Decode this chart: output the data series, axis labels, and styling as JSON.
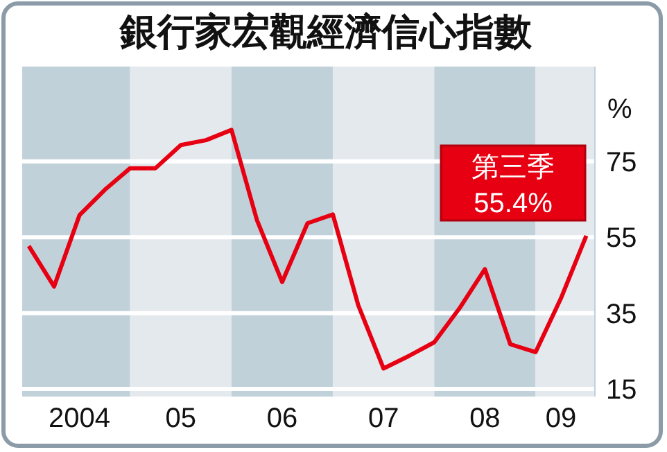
{
  "chart_data": {
    "type": "line",
    "title": "銀行家宏觀經濟信心指數",
    "ylabel": "%",
    "categories": [
      null,
      null,
      "2004",
      null,
      null,
      null,
      "05",
      null,
      null,
      null,
      "06",
      null,
      null,
      null,
      "07",
      null,
      null,
      null,
      "08",
      null,
      null,
      "09",
      null
    ],
    "series": [
      {
        "color": "#e60012",
        "values": [
          52.7,
          42.0,
          60.8,
          67.5,
          73.2,
          73.2,
          79.3,
          80.6,
          83.3,
          59.6,
          43.2,
          58.7,
          61.0,
          37.1,
          20.4,
          23.7,
          27.3,
          36.3,
          46.6,
          26.8,
          24.7,
          38.9,
          55.4
        ]
      }
    ],
    "ylim": [
      13,
      100
    ],
    "yticks": [
      15,
      35,
      55,
      75
    ],
    "grid": "y",
    "annotations": [
      "第三季\n55.4%"
    ]
  }
}
